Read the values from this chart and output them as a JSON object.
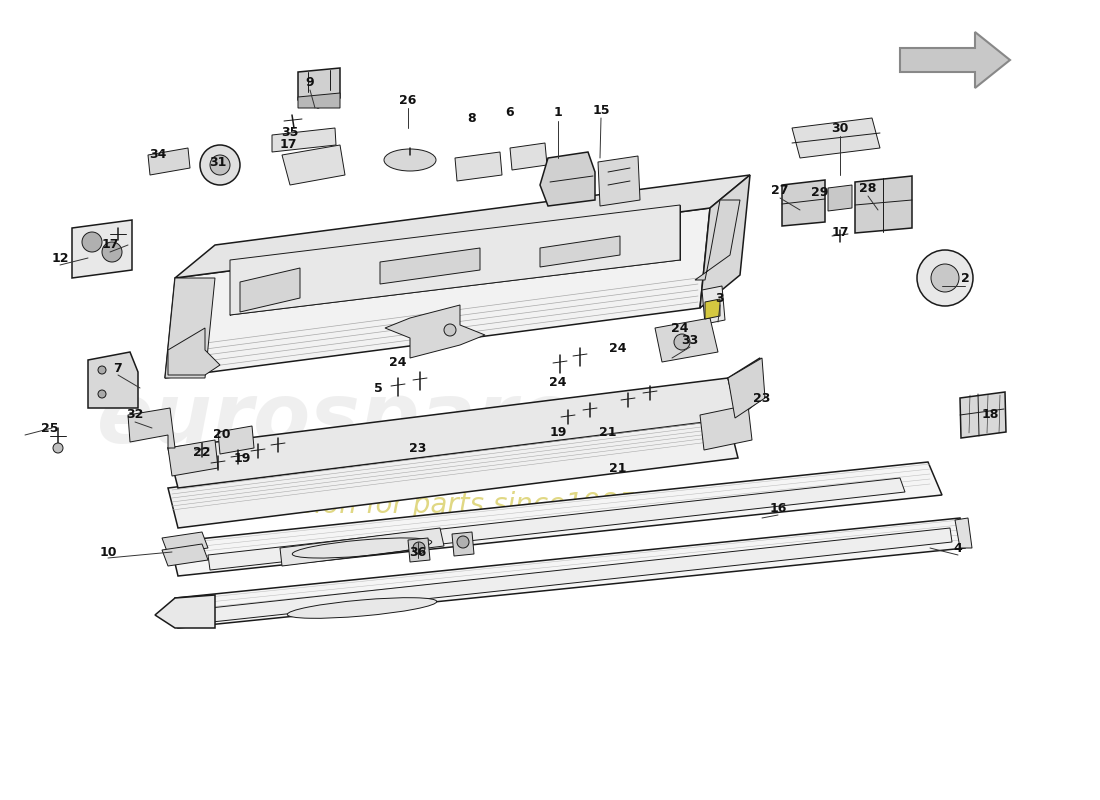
{
  "bg": "#ffffff",
  "lc": "#1a1a1a",
  "lc_light": "#555555",
  "wm1": "eurospares",
  "wm1_color": "#cccccc",
  "wm1_alpha": 0.3,
  "wm2": "a passion for parts since1985",
  "wm2_color": "#c8b820",
  "wm2_alpha": 0.55,
  "label_fs": 9,
  "label_color": "#111111",
  "labels": [
    [
      "9",
      310,
      82
    ],
    [
      "26",
      408,
      100
    ],
    [
      "8",
      472,
      118
    ],
    [
      "6",
      510,
      113
    ],
    [
      "1",
      558,
      113
    ],
    [
      "15",
      601,
      110
    ],
    [
      "34",
      158,
      155
    ],
    [
      "31",
      218,
      162
    ],
    [
      "17",
      288,
      145
    ],
    [
      "35",
      290,
      132
    ],
    [
      "30",
      840,
      128
    ],
    [
      "27",
      780,
      190
    ],
    [
      "29",
      820,
      192
    ],
    [
      "28",
      868,
      188
    ],
    [
      "17",
      840,
      232
    ],
    [
      "2",
      965,
      278
    ],
    [
      "12",
      60,
      258
    ],
    [
      "17",
      110,
      245
    ],
    [
      "3",
      720,
      298
    ],
    [
      "33",
      690,
      340
    ],
    [
      "7",
      118,
      368
    ],
    [
      "5",
      378,
      388
    ],
    [
      "24",
      398,
      362
    ],
    [
      "24",
      558,
      382
    ],
    [
      "24",
      618,
      348
    ],
    [
      "24",
      680,
      328
    ],
    [
      "25",
      50,
      428
    ],
    [
      "32",
      135,
      415
    ],
    [
      "20",
      222,
      435
    ],
    [
      "22",
      202,
      452
    ],
    [
      "19",
      242,
      458
    ],
    [
      "23",
      418,
      448
    ],
    [
      "19",
      558,
      432
    ],
    [
      "21",
      608,
      432
    ],
    [
      "23",
      762,
      398
    ],
    [
      "21",
      618,
      468
    ],
    [
      "18",
      990,
      415
    ],
    [
      "16",
      778,
      508
    ],
    [
      "10",
      108,
      552
    ],
    [
      "36",
      418,
      552
    ],
    [
      "4",
      958,
      548
    ]
  ],
  "leader_lines": [
    [
      310,
      90,
      315,
      108
    ],
    [
      408,
      108,
      408,
      128
    ],
    [
      558,
      121,
      558,
      158
    ],
    [
      601,
      118,
      600,
      158
    ],
    [
      840,
      136,
      840,
      175
    ],
    [
      60,
      265,
      88,
      258
    ],
    [
      110,
      252,
      128,
      245
    ],
    [
      780,
      198,
      800,
      210
    ],
    [
      868,
      196,
      878,
      210
    ],
    [
      965,
      286,
      942,
      286
    ],
    [
      720,
      305,
      718,
      322
    ],
    [
      690,
      347,
      672,
      358
    ],
    [
      118,
      375,
      140,
      388
    ],
    [
      25,
      435,
      52,
      428
    ],
    [
      135,
      422,
      152,
      428
    ],
    [
      778,
      515,
      762,
      518
    ],
    [
      108,
      558,
      172,
      552
    ],
    [
      418,
      558,
      418,
      542
    ],
    [
      958,
      555,
      930,
      548
    ]
  ]
}
